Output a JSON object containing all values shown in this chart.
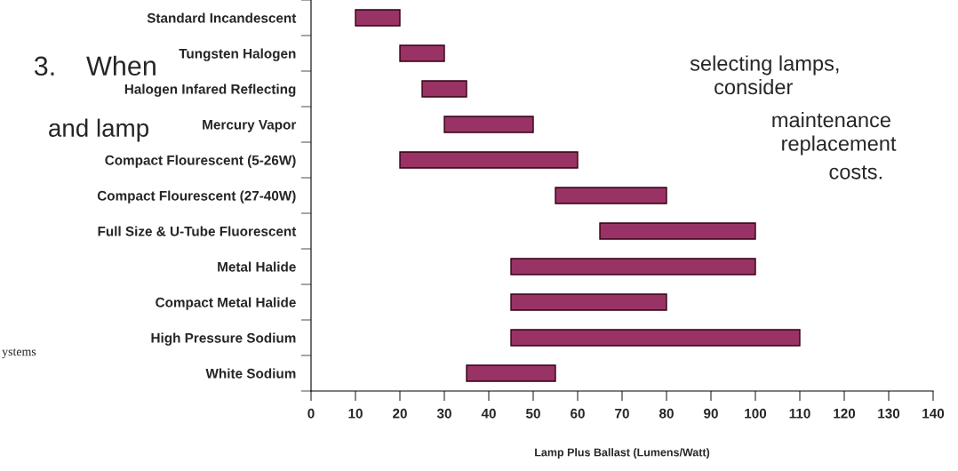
{
  "chart_data": {
    "type": "bar",
    "orientation": "horizontal",
    "xlabel": "Lamp Plus Ballast (Lumens/Watt)",
    "categories": [
      "Standard Incandescent",
      "Tungsten Halogen",
      "Halogen Infared Reflecting",
      "Mercury Vapor",
      "Compact Flourescent (5-26W)",
      "Compact Flourescent (27-40W)",
      "Full Size & U-Tube Fluorescent",
      "Metal Halide",
      "Compact Metal Halide",
      "High Pressure Sodium",
      "White Sodium"
    ],
    "base": [
      10,
      20,
      25,
      30,
      20,
      55,
      65,
      45,
      45,
      45,
      35
    ],
    "values": [
      10,
      10,
      10,
      20,
      40,
      25,
      35,
      55,
      35,
      65,
      20
    ],
    "color": "#993366",
    "xlim": [
      0,
      140
    ],
    "xticks": [
      0,
      10,
      20,
      30,
      40,
      50,
      60,
      70,
      80,
      90,
      100,
      110,
      120,
      130,
      140
    ],
    "grid": false,
    "annotations": [
      "3.",
      "When",
      "selecting lamps,",
      "consider",
      "maintenance",
      "and lamp",
      "replacement",
      "costs.",
      "ystems"
    ]
  }
}
